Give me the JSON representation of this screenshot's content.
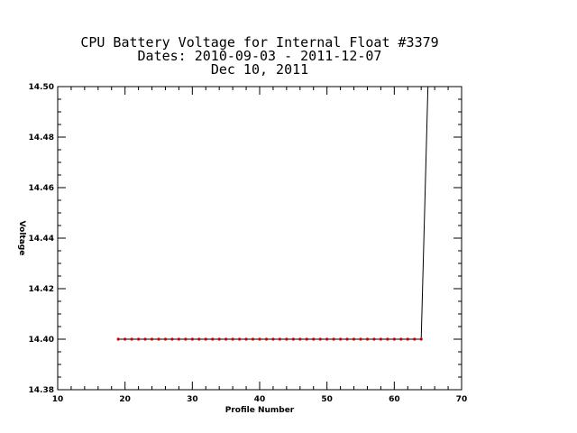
{
  "chart_data": {
    "type": "line",
    "title_lines": [
      "CPU Battery Voltage for Internal Float #3379",
      "Dates:  2010-09-03 -  2011-12-07",
      "Dec 10, 2011"
    ],
    "xlabel": "Profile Number",
    "ylabel": "Voltage",
    "xlim": [
      10,
      70
    ],
    "ylim": [
      14.38,
      14.5
    ],
    "xticks": [
      10,
      20,
      30,
      40,
      50,
      60,
      70
    ],
    "yticks": [
      14.38,
      14.4,
      14.42,
      14.44,
      14.46,
      14.48,
      14.5
    ],
    "ytick_labels": [
      "14.38",
      "14.40",
      "14.42",
      "14.44",
      "14.46",
      "14.48",
      "14.50"
    ],
    "grid": false,
    "series": [
      {
        "color": "#000000",
        "marker_color": "#cc0000",
        "x": [
          19,
          20,
          21,
          22,
          23,
          24,
          25,
          26,
          27,
          28,
          29,
          30,
          31,
          32,
          33,
          34,
          35,
          36,
          37,
          38,
          39,
          40,
          41,
          42,
          43,
          44,
          45,
          46,
          47,
          48,
          49,
          50,
          51,
          52,
          53,
          54,
          55,
          56,
          57,
          58,
          59,
          60,
          61,
          62,
          63,
          64,
          65
        ],
        "y": [
          14.4,
          14.4,
          14.4,
          14.4,
          14.4,
          14.4,
          14.4,
          14.4,
          14.4,
          14.4,
          14.4,
          14.4,
          14.4,
          14.4,
          14.4,
          14.4,
          14.4,
          14.4,
          14.4,
          14.4,
          14.4,
          14.4,
          14.4,
          14.4,
          14.4,
          14.4,
          14.4,
          14.4,
          14.4,
          14.4,
          14.4,
          14.4,
          14.4,
          14.4,
          14.4,
          14.4,
          14.4,
          14.4,
          14.4,
          14.4,
          14.4,
          14.4,
          14.4,
          14.4,
          14.4,
          14.4,
          14.5
        ],
        "markers_shown_count": 46
      }
    ]
  }
}
